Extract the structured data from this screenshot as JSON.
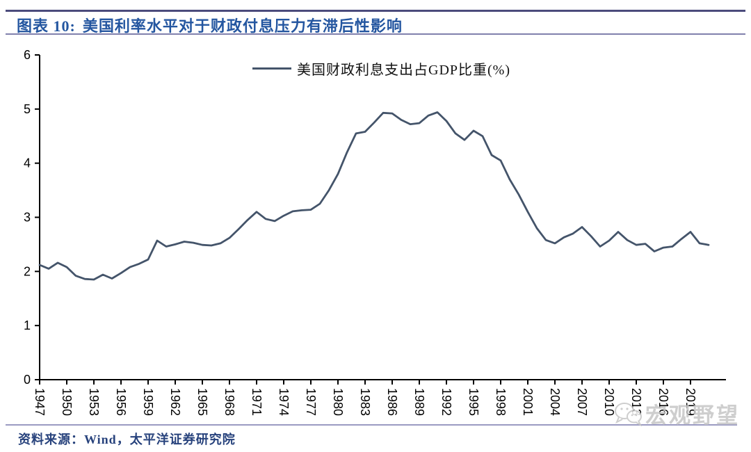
{
  "header": {
    "label": "图表 10:",
    "title": "美国利率水平对于财政付息压力有滞后性影响"
  },
  "footer": {
    "source": "资料来源：Wind，太平洋证券研究院"
  },
  "watermark": {
    "text": "宏观野望",
    "icon": "wechat-icon"
  },
  "colors": {
    "line": "#44546A",
    "title_blue": "#2456a0",
    "source_blue": "#27427c",
    "rule_dark": "#4b4b7c",
    "rule_light": "#8080ac",
    "axis": "#000000",
    "watermark_gray": "#c6c6c6"
  },
  "chart_data": {
    "type": "line",
    "title": "",
    "xlabel": "",
    "ylabel": "",
    "grid": false,
    "legend_position": "top",
    "ylim": [
      0,
      6
    ],
    "yticks": [
      0,
      1,
      2,
      3,
      4,
      5,
      6
    ],
    "xticks": [
      1947,
      1950,
      1953,
      1956,
      1959,
      1962,
      1965,
      1968,
      1971,
      1974,
      1977,
      1980,
      1983,
      1986,
      1989,
      1992,
      1995,
      1998,
      2001,
      2004,
      2007,
      2010,
      2013,
      2016,
      2019
    ],
    "xtick_rotation": 90,
    "x": [
      1947,
      1948,
      1949,
      1950,
      1951,
      1952,
      1953,
      1954,
      1955,
      1956,
      1957,
      1958,
      1959,
      1960,
      1961,
      1962,
      1963,
      1964,
      1965,
      1966,
      1967,
      1968,
      1969,
      1970,
      1971,
      1972,
      1973,
      1974,
      1975,
      1976,
      1977,
      1978,
      1979,
      1980,
      1981,
      1982,
      1983,
      1984,
      1985,
      1986,
      1987,
      1988,
      1989,
      1990,
      1991,
      1992,
      1993,
      1994,
      1995,
      1996,
      1997,
      1998,
      1999,
      2000,
      2001,
      2002,
      2003,
      2004,
      2005,
      2006,
      2007,
      2008,
      2009,
      2010,
      2011,
      2012,
      2013,
      2014,
      2015,
      2016,
      2017,
      2018,
      2019,
      2020,
      2021
    ],
    "series": [
      {
        "name": "美国财政利息支出占GDP比重(%)",
        "color": "#44546A",
        "values": [
          2.12,
          2.05,
          2.16,
          2.08,
          1.92,
          1.86,
          1.85,
          1.94,
          1.87,
          1.97,
          2.08,
          2.14,
          2.22,
          2.57,
          2.46,
          2.5,
          2.55,
          2.53,
          2.49,
          2.48,
          2.52,
          2.62,
          2.78,
          2.95,
          3.1,
          2.97,
          2.93,
          3.03,
          3.11,
          3.13,
          3.14,
          3.25,
          3.5,
          3.8,
          4.2,
          4.55,
          4.58,
          4.75,
          4.93,
          4.92,
          4.8,
          4.72,
          4.74,
          4.88,
          4.94,
          4.78,
          4.55,
          4.43,
          4.6,
          4.5,
          4.15,
          4.05,
          3.7,
          3.42,
          3.1,
          2.8,
          2.58,
          2.52,
          2.63,
          2.7,
          2.82,
          2.65,
          2.46,
          2.57,
          2.73,
          2.58,
          2.49,
          2.51,
          2.37,
          2.44,
          2.46,
          2.6,
          2.73,
          2.52,
          2.49
        ]
      }
    ]
  }
}
